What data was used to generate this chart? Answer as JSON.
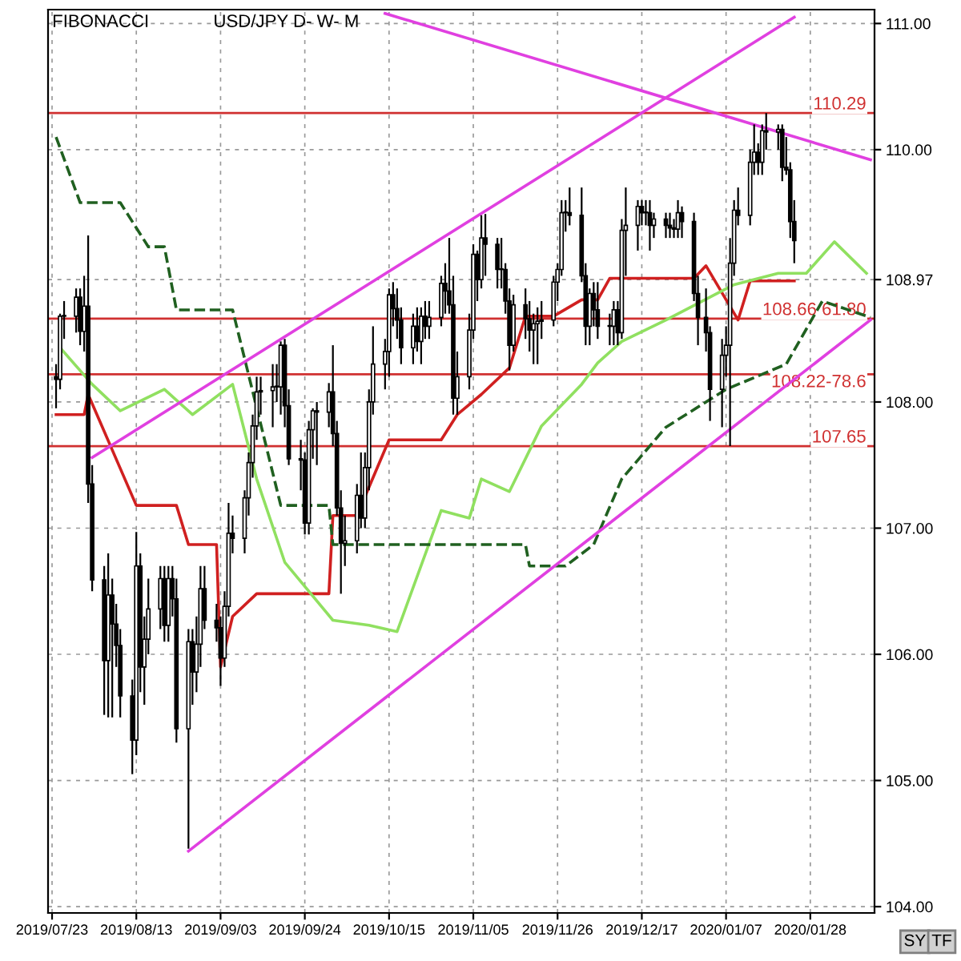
{
  "chart_data": {
    "type": "candlestick",
    "title": "FIBONACCI",
    "subtitle": "USD/JPY D- W- M",
    "x": [
      "2019-07-24",
      "2019-07-25",
      "2019-07-26",
      "2019-07-29",
      "2019-07-30",
      "2019-07-31",
      "2019-08-01",
      "2019-08-02",
      "2019-08-05",
      "2019-08-06",
      "2019-08-07",
      "2019-08-08",
      "2019-08-09",
      "2019-08-12",
      "2019-08-13",
      "2019-08-14",
      "2019-08-15",
      "2019-08-16",
      "2019-08-19",
      "2019-08-20",
      "2019-08-21",
      "2019-08-22",
      "2019-08-23",
      "2019-08-26",
      "2019-08-27",
      "2019-08-28",
      "2019-08-29",
      "2019-08-30",
      "2019-09-02",
      "2019-09-03",
      "2019-09-04",
      "2019-09-05",
      "2019-09-06",
      "2019-09-09",
      "2019-09-10",
      "2019-09-11",
      "2019-09-12",
      "2019-09-13",
      "2019-09-16",
      "2019-09-17",
      "2019-09-18",
      "2019-09-19",
      "2019-09-20",
      "2019-09-23",
      "2019-09-24",
      "2019-09-25",
      "2019-09-26",
      "2019-09-27",
      "2019-09-30",
      "2019-10-01",
      "2019-10-02",
      "2019-10-03",
      "2019-10-04",
      "2019-10-07",
      "2019-10-08",
      "2019-10-09",
      "2019-10-10",
      "2019-10-11",
      "2019-10-14",
      "2019-10-15",
      "2019-10-16",
      "2019-10-17",
      "2019-10-18",
      "2019-10-21",
      "2019-10-22",
      "2019-10-23",
      "2019-10-24",
      "2019-10-25",
      "2019-10-28",
      "2019-10-29",
      "2019-10-30",
      "2019-10-31",
      "2019-11-01",
      "2019-11-04",
      "2019-11-05",
      "2019-11-06",
      "2019-11-07",
      "2019-11-08",
      "2019-11-11",
      "2019-11-12",
      "2019-11-13",
      "2019-11-14",
      "2019-11-15",
      "2019-11-18",
      "2019-11-19",
      "2019-11-20",
      "2019-11-21",
      "2019-11-22",
      "2019-11-25",
      "2019-11-26",
      "2019-11-27",
      "2019-11-28",
      "2019-11-29",
      "2019-12-02",
      "2019-12-03",
      "2019-12-04",
      "2019-12-05",
      "2019-12-06",
      "2019-12-09",
      "2019-12-10",
      "2019-12-11",
      "2019-12-12",
      "2019-12-13",
      "2019-12-16",
      "2019-12-17",
      "2019-12-18",
      "2019-12-19",
      "2019-12-20",
      "2019-12-23",
      "2019-12-24",
      "2019-12-25",
      "2019-12-26",
      "2019-12-27",
      "2019-12-30",
      "2019-12-31",
      "2020-01-02",
      "2020-01-03",
      "2020-01-06",
      "2020-01-07",
      "2020-01-08",
      "2020-01-09",
      "2020-01-10",
      "2020-01-13",
      "2020-01-14",
      "2020-01-15",
      "2020-01-16",
      "2020-01-17",
      "2020-01-20",
      "2020-01-21",
      "2020-01-22",
      "2020-01-23",
      "2020-01-24"
    ],
    "ohlc": [
      [
        108.2,
        108.3,
        107.95,
        108.18
      ],
      [
        108.18,
        108.7,
        108.1,
        108.68
      ],
      [
        108.68,
        108.8,
        108.5,
        108.68
      ],
      [
        108.68,
        108.9,
        108.55,
        108.83
      ],
      [
        108.83,
        108.9,
        108.45,
        108.56
      ],
      [
        108.56,
        109.0,
        108.4,
        108.76
      ],
      [
        108.76,
        109.32,
        107.2,
        107.35
      ],
      [
        107.35,
        107.5,
        106.5,
        106.59
      ],
      [
        106.59,
        106.7,
        105.52,
        105.95
      ],
      [
        105.95,
        106.8,
        105.5,
        106.47
      ],
      [
        106.47,
        106.6,
        105.5,
        106.24
      ],
      [
        106.24,
        106.4,
        105.9,
        106.07
      ],
      [
        106.07,
        106.2,
        105.5,
        105.67
      ],
      [
        105.67,
        105.8,
        105.05,
        105.32
      ],
      [
        105.32,
        106.97,
        105.2,
        106.7
      ],
      [
        106.7,
        106.8,
        105.7,
        105.9
      ],
      [
        105.9,
        106.3,
        105.6,
        106.12
      ],
      [
        106.12,
        106.6,
        106.0,
        106.36
      ],
      [
        106.36,
        106.7,
        106.2,
        106.6
      ],
      [
        106.6,
        106.7,
        106.1,
        106.23
      ],
      [
        106.23,
        106.7,
        106.1,
        106.6
      ],
      [
        106.6,
        106.7,
        106.3,
        106.44
      ],
      [
        106.44,
        106.6,
        105.3,
        105.41
      ],
      [
        105.41,
        106.2,
        104.46,
        106.1
      ],
      [
        106.1,
        106.2,
        105.6,
        105.86
      ],
      [
        105.86,
        106.3,
        105.7,
        106.08
      ],
      [
        106.08,
        106.7,
        105.9,
        106.52
      ],
      [
        106.52,
        106.7,
        106.2,
        106.27
      ],
      [
        106.27,
        106.4,
        106.1,
        106.21
      ],
      [
        106.21,
        106.3,
        105.75,
        105.97
      ],
      [
        105.97,
        106.5,
        105.9,
        106.38
      ],
      [
        106.38,
        107.2,
        106.3,
        106.96
      ],
      [
        106.96,
        107.1,
        106.8,
        106.92
      ],
      [
        106.92,
        107.3,
        106.8,
        107.24
      ],
      [
        107.24,
        107.6,
        107.1,
        107.52
      ],
      [
        107.52,
        107.9,
        107.4,
        107.81
      ],
      [
        107.81,
        108.2,
        107.7,
        108.08
      ],
      [
        108.08,
        108.2,
        107.9,
        108.09
      ],
      [
        108.09,
        108.3,
        107.8,
        108.12
      ],
      [
        108.12,
        108.3,
        108.0,
        108.12
      ],
      [
        108.12,
        108.48,
        107.9,
        108.45
      ],
      [
        108.45,
        108.5,
        107.8,
        107.97
      ],
      [
        107.97,
        108.1,
        107.5,
        107.55
      ],
      [
        107.55,
        107.7,
        107.3,
        107.54
      ],
      [
        107.54,
        107.6,
        106.95,
        107.04
      ],
      [
        107.04,
        107.85,
        106.95,
        107.78
      ],
      [
        107.78,
        107.95,
        107.55,
        107.93
      ],
      [
        107.93,
        108.0,
        107.5,
        107.92
      ],
      [
        107.92,
        108.15,
        107.8,
        108.08
      ],
      [
        108.08,
        108.45,
        107.65,
        107.75
      ],
      [
        107.75,
        107.85,
        107.1,
        107.16
      ],
      [
        107.16,
        107.3,
        106.48,
        106.88
      ],
      [
        106.88,
        107.1,
        106.7,
        106.9
      ],
      [
        106.9,
        107.35,
        106.8,
        107.26
      ],
      [
        107.26,
        107.6,
        107.0,
        107.08
      ],
      [
        107.08,
        107.6,
        107.0,
        107.48
      ],
      [
        107.48,
        108.1,
        107.3,
        108.0
      ],
      [
        108.0,
        108.6,
        107.9,
        108.3
      ],
      [
        108.3,
        108.5,
        108.1,
        108.4
      ],
      [
        108.4,
        108.9,
        108.2,
        108.85
      ],
      [
        108.85,
        108.95,
        108.6,
        108.74
      ],
      [
        108.74,
        108.9,
        108.5,
        108.65
      ],
      [
        108.65,
        108.75,
        108.3,
        108.43
      ],
      [
        108.43,
        108.7,
        108.3,
        108.6
      ],
      [
        108.6,
        108.75,
        108.4,
        108.48
      ],
      [
        108.48,
        108.75,
        108.3,
        108.68
      ],
      [
        108.68,
        108.8,
        108.5,
        108.6
      ],
      [
        108.6,
        108.8,
        108.5,
        108.67
      ],
      [
        108.67,
        109.0,
        108.6,
        108.94
      ],
      [
        108.94,
        109.1,
        108.7,
        108.88
      ],
      [
        108.88,
        109.3,
        108.7,
        108.77
      ],
      [
        108.77,
        109.0,
        107.9,
        108.03
      ],
      [
        108.03,
        108.4,
        107.9,
        108.2
      ],
      [
        108.2,
        108.7,
        108.1,
        108.57
      ],
      [
        108.57,
        109.25,
        108.5,
        109.17
      ],
      [
        109.17,
        109.2,
        108.8,
        108.97
      ],
      [
        108.97,
        109.48,
        108.9,
        109.3
      ],
      [
        109.3,
        109.49,
        109.0,
        109.25
      ],
      [
        109.25,
        109.3,
        108.9,
        109.05
      ],
      [
        109.05,
        109.3,
        108.9,
        109.05
      ],
      [
        109.05,
        109.1,
        108.7,
        108.8
      ],
      [
        108.8,
        108.9,
        108.25,
        108.45
      ],
      [
        108.45,
        108.85,
        108.4,
        108.77
      ],
      [
        108.77,
        108.9,
        108.5,
        108.66
      ],
      [
        108.66,
        108.8,
        108.4,
        108.57
      ],
      [
        108.57,
        108.7,
        108.3,
        108.62
      ],
      [
        108.62,
        108.75,
        108.3,
        108.64
      ],
      [
        108.64,
        108.8,
        108.5,
        108.65
      ],
      [
        108.65,
        109.0,
        108.6,
        108.95
      ],
      [
        108.95,
        109.1,
        108.8,
        109.05
      ],
      [
        109.05,
        109.6,
        109.0,
        109.5
      ],
      [
        109.5,
        109.6,
        109.35,
        109.5
      ],
      [
        109.5,
        109.7,
        109.4,
        109.48
      ],
      [
        109.48,
        109.7,
        108.95,
        109.0
      ],
      [
        109.0,
        109.1,
        108.45,
        108.6
      ],
      [
        108.6,
        108.9,
        108.45,
        108.86
      ],
      [
        108.86,
        108.95,
        108.6,
        108.73
      ],
      [
        108.73,
        108.95,
        108.5,
        108.6
      ],
      [
        108.6,
        108.7,
        108.45,
        108.6
      ],
      [
        108.6,
        108.8,
        108.45,
        108.73
      ],
      [
        108.73,
        108.8,
        108.45,
        108.55
      ],
      [
        108.55,
        109.45,
        108.5,
        109.36
      ],
      [
        109.36,
        109.7,
        109.0,
        109.4
      ],
      [
        109.4,
        109.6,
        109.2,
        109.55
      ],
      [
        109.55,
        109.6,
        109.4,
        109.5
      ],
      [
        109.5,
        109.6,
        109.4,
        109.5
      ],
      [
        109.5,
        109.6,
        109.2,
        109.4
      ],
      [
        109.4,
        109.5,
        109.3,
        109.45
      ],
      [
        109.45,
        109.5,
        109.3,
        109.4
      ],
      [
        109.4,
        109.5,
        109.3,
        109.38
      ],
      [
        109.38,
        109.45,
        109.3,
        109.37
      ],
      [
        109.37,
        109.6,
        109.3,
        109.5
      ],
      [
        109.5,
        109.55,
        109.3,
        109.43
      ],
      [
        109.43,
        109.5,
        108.8,
        108.86
      ],
      [
        108.86,
        109.0,
        108.45,
        108.67
      ],
      [
        108.67,
        108.9,
        108.4,
        108.55
      ],
      [
        108.55,
        108.6,
        107.85,
        108.1
      ],
      [
        108.1,
        108.5,
        107.8,
        108.37
      ],
      [
        108.37,
        108.6,
        108.2,
        108.45
      ],
      [
        108.45,
        109.3,
        107.65,
        109.1
      ],
      [
        109.1,
        109.6,
        109.0,
        109.52
      ],
      [
        109.52,
        109.7,
        109.4,
        109.48
      ],
      [
        109.48,
        110.0,
        109.4,
        109.9
      ],
      [
        109.9,
        110.2,
        109.8,
        109.98
      ],
      [
        109.98,
        110.05,
        109.8,
        109.9
      ],
      [
        109.9,
        110.2,
        109.8,
        110.15
      ],
      [
        110.15,
        110.29,
        110.0,
        110.14
      ],
      [
        110.14,
        110.2,
        110.0,
        110.16
      ],
      [
        110.16,
        110.2,
        109.75,
        109.86
      ],
      [
        109.86,
        110.1,
        109.8,
        109.84
      ],
      [
        109.84,
        109.9,
        109.3,
        109.43
      ],
      [
        109.43,
        109.6,
        109.1,
        109.28
      ]
    ],
    "series": [
      {
        "type": "line",
        "color": "#d02020",
        "line_style": "solid",
        "x": [
          "2019-07-24",
          "2019-07-31",
          "2019-08-01",
          "2019-08-13",
          "2019-08-23",
          "2019-08-26",
          "2019-09-02",
          "2019-09-03",
          "2019-09-06",
          "2019-09-12",
          "2019-09-30",
          "2019-10-01",
          "2019-10-07",
          "2019-10-15",
          "2019-10-28",
          "2019-11-01",
          "2019-11-07",
          "2019-11-14",
          "2019-11-18",
          "2019-11-25",
          "2019-12-02",
          "2019-12-06",
          "2019-12-09",
          "2019-12-30",
          "2020-01-02",
          "2020-01-10",
          "2020-01-13",
          "2020-01-24"
        ],
        "values": [
          107.9,
          107.9,
          108.06,
          107.18,
          107.18,
          106.87,
          106.87,
          105.9,
          106.3,
          106.48,
          106.48,
          107.1,
          107.1,
          107.7,
          107.7,
          107.9,
          108.06,
          108.27,
          108.68,
          108.68,
          108.81,
          108.81,
          108.98,
          108.98,
          109.08,
          108.65,
          108.96,
          108.96
        ]
      },
      {
        "type": "line",
        "color": "#90e060",
        "line_style": "solid",
        "x": [
          "2019-07-25",
          "2019-08-02",
          "2019-08-09",
          "2019-08-20",
          "2019-08-27",
          "2019-09-06",
          "2019-09-12",
          "2019-09-19",
          "2019-10-01",
          "2019-10-10",
          "2019-10-17",
          "2019-10-28",
          "2019-11-04",
          "2019-11-07",
          "2019-11-14",
          "2019-11-22",
          "2019-12-02",
          "2019-12-06",
          "2019-12-12",
          "2019-12-23",
          "2020-01-09",
          "2020-01-20",
          "2020-01-27",
          "2020-02-03",
          "2020-02-11"
        ],
        "values": [
          108.43,
          108.14,
          107.93,
          108.1,
          107.9,
          108.14,
          107.39,
          106.73,
          106.27,
          106.23,
          106.18,
          107.14,
          107.08,
          107.39,
          107.29,
          107.81,
          108.14,
          108.31,
          108.48,
          108.65,
          108.93,
          109.02,
          109.02,
          109.27,
          109.02
        ]
      },
      {
        "type": "line",
        "color": "#206020",
        "line_style": "dashed",
        "x": [
          "2019-07-24",
          "2019-07-30",
          "2019-08-09",
          "2019-08-16",
          "2019-08-20",
          "2019-08-23",
          "2019-09-06",
          "2019-09-18",
          "2019-09-30",
          "2019-10-01",
          "2019-11-18",
          "2019-11-19",
          "2019-11-28",
          "2019-12-05",
          "2019-12-12",
          "2019-12-23",
          "2020-01-07",
          "2020-01-22",
          "2020-01-31",
          "2020-02-12"
        ],
        "values": [
          110.1,
          109.58,
          109.58,
          109.23,
          109.23,
          108.73,
          108.73,
          107.18,
          107.18,
          106.87,
          106.87,
          106.7,
          106.7,
          106.87,
          107.39,
          107.8,
          108.1,
          108.3,
          108.8,
          108.67
        ]
      },
      {
        "type": "line",
        "color": "#e040e0",
        "line_style": "solid",
        "x": [
          "2019-08-26",
          "2020-02-12"
        ],
        "values": [
          104.44,
          108.65
        ]
      },
      {
        "type": "line",
        "color": "#e040e0",
        "line_style": "solid",
        "x": [
          "2019-08-02",
          "2020-01-24"
        ],
        "values": [
          107.56,
          111.05
        ]
      },
      {
        "type": "line",
        "color": "#e040e0",
        "line_style": "solid",
        "x": [
          "2019-10-14",
          "2020-02-12"
        ],
        "values": [
          111.08,
          109.92
        ]
      }
    ],
    "ref_lines": [
      {
        "axis": "y",
        "value": 110.29,
        "label": "110.29",
        "color": "#d03030"
      },
      {
        "axis": "y",
        "value": 108.66,
        "label": "108.66 61.80",
        "color": "#d03030"
      },
      {
        "axis": "y",
        "value": 108.22,
        "label": "108.22-78.6",
        "color": "#d03030"
      },
      {
        "axis": "y",
        "value": 107.65,
        "label": "107.65",
        "color": "#d03030"
      }
    ],
    "xlim": [
      "2019-07-22",
      "2020-02-13"
    ],
    "xticks": [
      {
        "value": "2019-07-23",
        "label": "2019/07/23"
      },
      {
        "value": "2019-08-13",
        "label": "2019/08/13"
      },
      {
        "value": "2019-09-03",
        "label": "2019/09/03"
      },
      {
        "value": "2019-09-24",
        "label": "2019/09/24"
      },
      {
        "value": "2019-10-15",
        "label": "2019/10/15"
      },
      {
        "value": "2019-11-05",
        "label": "2019/11/05"
      },
      {
        "value": "2019-11-26",
        "label": "2019/11/26"
      },
      {
        "value": "2019-12-17",
        "label": "2019/12/17"
      },
      {
        "value": "2020-01-07",
        "label": "2020/01/07"
      },
      {
        "value": "2020-01-28",
        "label": "2020/01/28"
      }
    ],
    "ylim": [
      103.95,
      111.11
    ],
    "yticks": [
      {
        "value": 104,
        "label": "104.00"
      },
      {
        "value": 105,
        "label": "105.00"
      },
      {
        "value": 106,
        "label": "106.00"
      },
      {
        "value": 107,
        "label": "107.00"
      },
      {
        "value": 108,
        "label": "108.00"
      },
      {
        "value": 108.97,
        "label": "108.97"
      },
      {
        "value": 110,
        "label": "110.00"
      },
      {
        "value": 111,
        "label": "111.00"
      }
    ],
    "grid": true,
    "annotations": [
      "SY",
      "TF"
    ]
  }
}
